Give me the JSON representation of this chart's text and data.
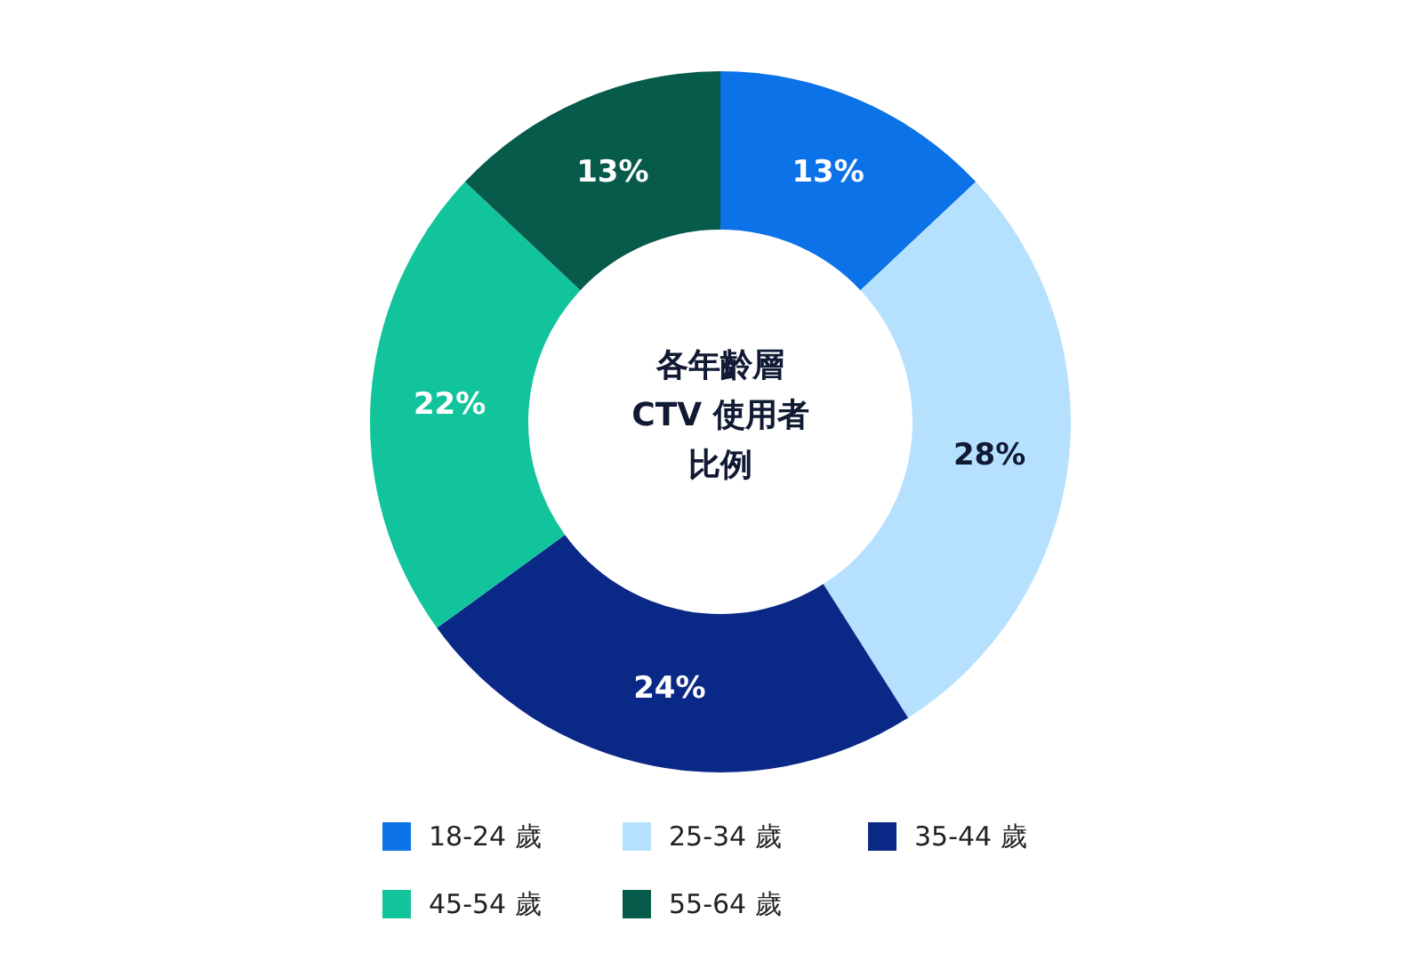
{
  "chart_data": {
    "type": "donut",
    "title": "各年齡層CTV 使用者比例",
    "categories": [
      "18-24 歲",
      "25-34 歲",
      "35-44 歲",
      "45-54 歲",
      "55-64 歲"
    ],
    "values": [
      13,
      28,
      24,
      22,
      13
    ],
    "colors": [
      "#0b72e7",
      "#b5e1ff",
      "#0a2886",
      "#12c49c",
      "#075b4b"
    ],
    "value_labels": [
      "13%",
      "28%",
      "24%",
      "22%",
      "13%"
    ],
    "legend": "bottom"
  }
}
